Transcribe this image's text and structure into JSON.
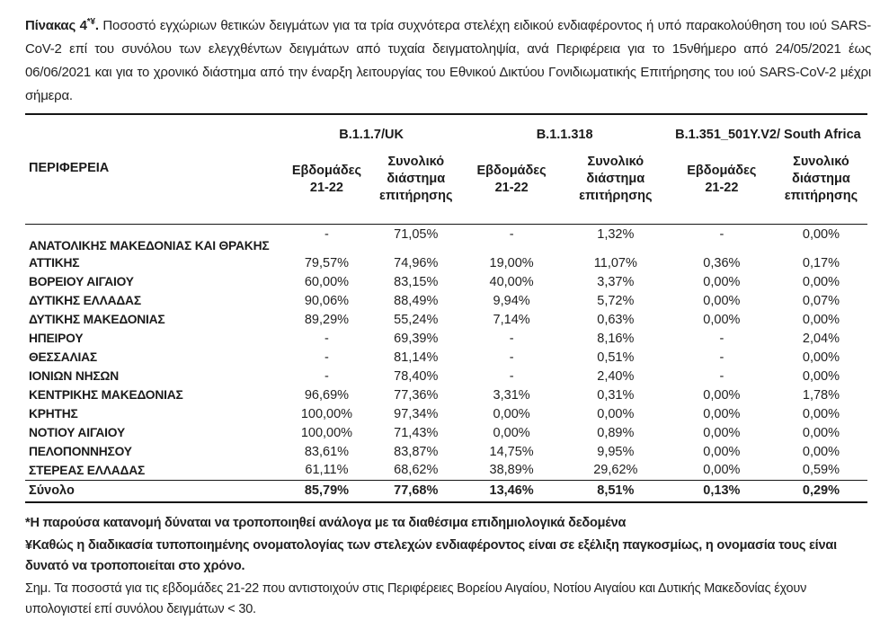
{
  "title": {
    "lead": "Πίνακας 4",
    "sup": "*¥",
    "punct": ".",
    "body": "  Ποσοστό εγχώριων θετικών δειγμάτων για τα τρία συχνότερα στελέχη ειδικού ενδιαφέροντος ή υπό παρακολούθηση του ιού SARS-CoV-2 επί του συνόλου των ελεγχθέντων δειγμάτων από τυχαία δειγματοληψία, ανά Περιφέρεια για το 15νθήμερο από 24/05/2021 έως 06/06/2021 και για το χρονικό διάστημα από την έναρξη λειτουργίας του Εθνικού Δικτύου Γονιδιωματικής Επιτήρησης του ιού SARS-CoV-2 μέχρι σήμερα."
  },
  "table": {
    "region_header": "ΠΕΡΙΦΕΡΕΙΑ",
    "variants": [
      "B.1.1.7/UK",
      "B.1.1.318",
      "B.1.351_501Y.V2/ South Africa"
    ],
    "col_weeks": "Εβδομάδες\n21-22",
    "col_total": "Συνολικό\nδιάστημα\nεπιτήρησης",
    "rows": [
      {
        "region": "ΑΝΑΤΟΛΙΚΗΣ ΜΑΚΕΔΟΝΙΑΣ ΚΑΙ ΘΡΑΚΗΣ",
        "values": [
          "-",
          "71,05%",
          "-",
          "1,32%",
          "-",
          "0,00%"
        ]
      },
      {
        "region": "ΑΤΤΙΚΗΣ",
        "values": [
          "79,57%",
          "74,96%",
          "19,00%",
          "11,07%",
          "0,36%",
          "0,17%"
        ]
      },
      {
        "region": "ΒΟΡΕΙΟΥ ΑΙΓΑΙΟΥ",
        "values": [
          "60,00%",
          "83,15%",
          "40,00%",
          "3,37%",
          "0,00%",
          "0,00%"
        ]
      },
      {
        "region": "ΔΥΤΙΚΗΣ ΕΛΛΑΔΑΣ",
        "values": [
          "90,06%",
          "88,49%",
          "9,94%",
          "5,72%",
          "0,00%",
          "0,07%"
        ]
      },
      {
        "region": "ΔΥΤΙΚΗΣ ΜΑΚΕΔΟΝΙΑΣ",
        "values": [
          "89,29%",
          "55,24%",
          "7,14%",
          "0,63%",
          "0,00%",
          "0,00%"
        ]
      },
      {
        "region": "ΗΠΕΙΡΟΥ",
        "values": [
          "-",
          "69,39%",
          "-",
          "8,16%",
          "-",
          "2,04%"
        ]
      },
      {
        "region": "ΘΕΣΣΑΛΙΑΣ",
        "values": [
          "-",
          "81,14%",
          "-",
          "0,51%",
          "-",
          "0,00%"
        ]
      },
      {
        "region": "ΙΟΝΙΩΝ ΝΗΣΩΝ",
        "values": [
          "-",
          "78,40%",
          "-",
          "2,40%",
          "-",
          "0,00%"
        ]
      },
      {
        "region": "ΚΕΝΤΡΙΚΗΣ ΜΑΚΕΔΟΝΙΑΣ",
        "values": [
          "96,69%",
          "77,36%",
          "3,31%",
          "0,31%",
          "0,00%",
          "1,78%"
        ]
      },
      {
        "region": "ΚΡΗΤΗΣ",
        "values": [
          "100,00%",
          "97,34%",
          "0,00%",
          "0,00%",
          "0,00%",
          "0,00%"
        ]
      },
      {
        "region": "ΝΟΤΙΟΥ ΑΙΓΑΙΟΥ",
        "values": [
          "100,00%",
          "71,43%",
          "0,00%",
          "0,89%",
          "0,00%",
          "0,00%"
        ]
      },
      {
        "region": "ΠΕΛΟΠΟΝΝΗΣΟΥ",
        "values": [
          "83,61%",
          "83,87%",
          "14,75%",
          "9,95%",
          "0,00%",
          "0,00%"
        ]
      },
      {
        "region": "ΣΤΕΡΕΑΣ ΕΛΛΑΔΑΣ",
        "values": [
          "61,11%",
          "68,62%",
          "38,89%",
          "29,62%",
          "0,00%",
          "0,59%"
        ]
      }
    ],
    "total": {
      "label": "Σύνολο",
      "values": [
        "85,79%",
        "77,68%",
        "13,46%",
        "8,51%",
        "0,13%",
        "0,29%"
      ]
    }
  },
  "footnotes": [
    {
      "text": "*Η παρούσα κατανομή δύναται να τροποποιηθεί ανάλογα με τα διαθέσιμα επιδημιολογικά δεδομένα"
    },
    {
      "text": "¥Καθώς η διαδικασία τυποποιημένης ονοματολογίας των στελεχών ενδιαφέροντος είναι σε εξέλιξη παγκοσμίως, η ονομασία τους είναι δυνατό να τροποποιείται στο χρόνο."
    },
    {
      "text": "Σημ.  Τα ποσοστά για τις εβδομάδες 21-22 που αντιστοιχούν στις Περιφέρειες Βορείου Αιγαίου, Νοτίου Αιγαίου και Δυτικής Μακεδονίας έχουν υπολογιστεί επί συνόλου δειγμάτων < 30."
    }
  ],
  "colors": {
    "text": "#1b1b1b",
    "rule": "#151515",
    "background": "#ffffff"
  }
}
